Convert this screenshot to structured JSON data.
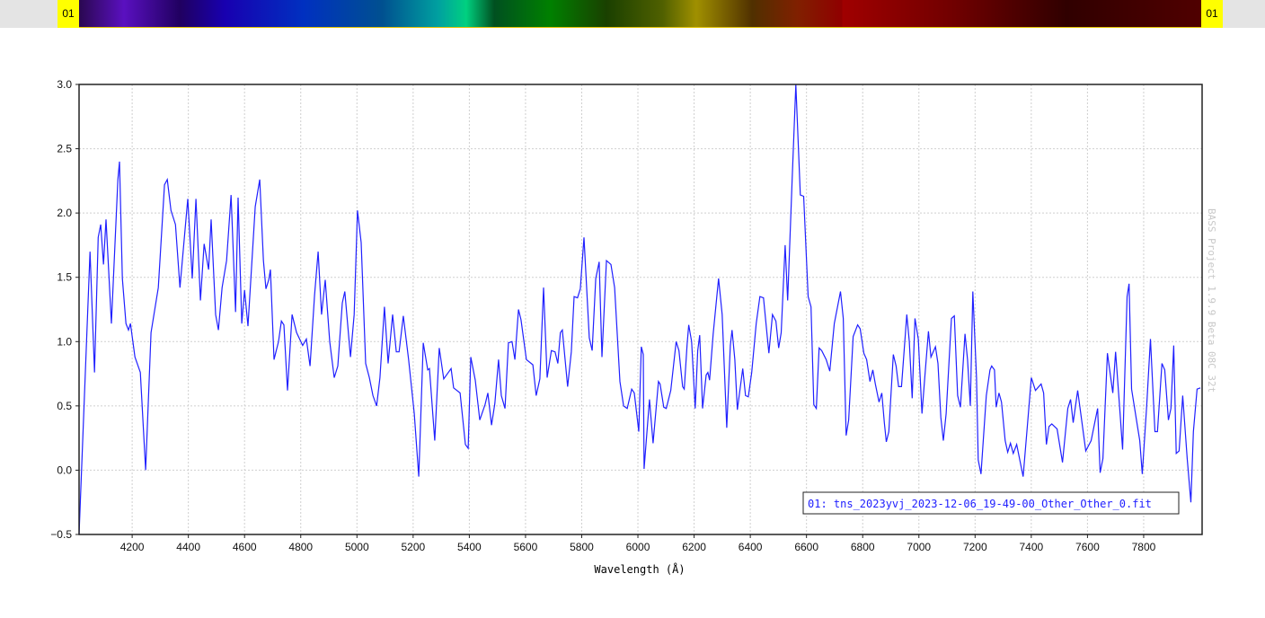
{
  "colorbar": {
    "left_label": "01",
    "right_label": "01",
    "tag_color": "#ffff00"
  },
  "watermark": "BASS Project 1.9.9 Beta 08C 32t",
  "chart_data": {
    "type": "line",
    "title": "",
    "xlabel": "Wavelength (Å)",
    "ylabel": "",
    "xlim": [
      4011,
      8008
    ],
    "ylim": [
      -0.5,
      3.0
    ],
    "xticks": [
      4200,
      4400,
      4600,
      4800,
      5000,
      5200,
      5400,
      5600,
      5800,
      6000,
      6200,
      6400,
      6600,
      6800,
      7000,
      7200,
      7400,
      7600,
      7800
    ],
    "yticks": [
      -0.5,
      0.0,
      0.5,
      1.0,
      1.5,
      2.0,
      2.5,
      3.0
    ],
    "ytick_labels": [
      "−0.5",
      "0.0",
      "0.5",
      "1.0",
      "1.5",
      "2.0",
      "2.5",
      "3.0"
    ],
    "grid": true,
    "legend_placement": "bottom-right",
    "series": [
      {
        "name": "01:  tns_2023yvj_2023-12-06_19-49-00_Other_Other_0.fit",
        "color": "#2020ff",
        "points": [
          [
            4011,
            -0.5
          ],
          [
            4050,
            1.7
          ],
          [
            4066,
            0.76
          ],
          [
            4079,
            1.81
          ],
          [
            4088,
            1.91
          ],
          [
            4098,
            1.6
          ],
          [
            4107,
            1.95
          ],
          [
            4126,
            1.14
          ],
          [
            4149,
            2.26
          ],
          [
            4155,
            2.4
          ],
          [
            4165,
            1.49
          ],
          [
            4178,
            1.14
          ],
          [
            4187,
            1.09
          ],
          [
            4194,
            1.14
          ],
          [
            4210,
            0.88
          ],
          [
            4229,
            0.76
          ],
          [
            4248,
            0.0
          ],
          [
            4267,
            1.07
          ],
          [
            4293,
            1.42
          ],
          [
            4315,
            2.22
          ],
          [
            4325,
            2.26
          ],
          [
            4338,
            2.02
          ],
          [
            4354,
            1.91
          ],
          [
            4370,
            1.42
          ],
          [
            4398,
            2.11
          ],
          [
            4414,
            1.49
          ],
          [
            4427,
            2.11
          ],
          [
            4443,
            1.32
          ],
          [
            4456,
            1.76
          ],
          [
            4472,
            1.56
          ],
          [
            4481,
            1.95
          ],
          [
            4497,
            1.21
          ],
          [
            4507,
            1.09
          ],
          [
            4520,
            1.42
          ],
          [
            4536,
            1.63
          ],
          [
            4552,
            2.14
          ],
          [
            4568,
            1.23
          ],
          [
            4577,
            2.12
          ],
          [
            4590,
            1.14
          ],
          [
            4600,
            1.4
          ],
          [
            4612,
            1.12
          ],
          [
            4638,
            2.05
          ],
          [
            4654,
            2.26
          ],
          [
            4667,
            1.63
          ],
          [
            4676,
            1.41
          ],
          [
            4686,
            1.48
          ],
          [
            4692,
            1.56
          ],
          [
            4705,
            0.86
          ],
          [
            4721,
            1.0
          ],
          [
            4731,
            1.16
          ],
          [
            4740,
            1.13
          ],
          [
            4753,
            0.62
          ],
          [
            4769,
            1.21
          ],
          [
            4785,
            1.07
          ],
          [
            4807,
            0.97
          ],
          [
            4820,
            1.02
          ],
          [
            4833,
            0.81
          ],
          [
            4849,
            1.36
          ],
          [
            4862,
            1.7
          ],
          [
            4874,
            1.21
          ],
          [
            4887,
            1.48
          ],
          [
            4903,
            1.0
          ],
          [
            4919,
            0.72
          ],
          [
            4932,
            0.81
          ],
          [
            4948,
            1.3
          ],
          [
            4957,
            1.39
          ],
          [
            4977,
            0.88
          ],
          [
            4990,
            1.21
          ],
          [
            5002,
            2.02
          ],
          [
            5015,
            1.77
          ],
          [
            5031,
            0.83
          ],
          [
            5044,
            0.72
          ],
          [
            5057,
            0.58
          ],
          [
            5070,
            0.5
          ],
          [
            5082,
            0.72
          ],
          [
            5098,
            1.27
          ],
          [
            5111,
            0.83
          ],
          [
            5127,
            1.21
          ],
          [
            5140,
            0.92
          ],
          [
            5150,
            0.92
          ],
          [
            5165,
            1.2
          ],
          [
            5184,
            0.86
          ],
          [
            5204,
            0.44
          ],
          [
            5220,
            -0.05
          ],
          [
            5236,
            0.99
          ],
          [
            5252,
            0.78
          ],
          [
            5258,
            0.79
          ],
          [
            5277,
            0.23
          ],
          [
            5293,
            0.95
          ],
          [
            5309,
            0.71
          ],
          [
            5335,
            0.79
          ],
          [
            5344,
            0.64
          ],
          [
            5367,
            0.6
          ],
          [
            5386,
            0.2
          ],
          [
            5396,
            0.17
          ],
          [
            5405,
            0.88
          ],
          [
            5421,
            0.7
          ],
          [
            5437,
            0.39
          ],
          [
            5456,
            0.51
          ],
          [
            5466,
            0.6
          ],
          [
            5479,
            0.35
          ],
          [
            5491,
            0.52
          ],
          [
            5504,
            0.86
          ],
          [
            5514,
            0.58
          ],
          [
            5527,
            0.48
          ],
          [
            5539,
            0.99
          ],
          [
            5552,
            1.0
          ],
          [
            5562,
            0.86
          ],
          [
            5575,
            1.25
          ],
          [
            5584,
            1.17
          ],
          [
            5603,
            0.86
          ],
          [
            5626,
            0.82
          ],
          [
            5638,
            0.58
          ],
          [
            5651,
            0.71
          ],
          [
            5664,
            1.42
          ],
          [
            5677,
            0.72
          ],
          [
            5692,
            0.93
          ],
          [
            5705,
            0.92
          ],
          [
            5715,
            0.83
          ],
          [
            5724,
            1.07
          ],
          [
            5731,
            1.09
          ],
          [
            5750,
            0.65
          ],
          [
            5763,
            0.92
          ],
          [
            5773,
            1.35
          ],
          [
            5785,
            1.34
          ],
          [
            5795,
            1.41
          ],
          [
            5808,
            1.81
          ],
          [
            5827,
            1.03
          ],
          [
            5837,
            0.93
          ],
          [
            5850,
            1.49
          ],
          [
            5862,
            1.62
          ],
          [
            5872,
            0.88
          ],
          [
            5888,
            1.63
          ],
          [
            5904,
            1.6
          ],
          [
            5917,
            1.42
          ],
          [
            5936,
            0.69
          ],
          [
            5949,
            0.5
          ],
          [
            5962,
            0.48
          ],
          [
            5978,
            0.63
          ],
          [
            5987,
            0.6
          ],
          [
            6003,
            0.3
          ],
          [
            6012,
            0.96
          ],
          [
            6019,
            0.9
          ],
          [
            6022,
            0.01
          ],
          [
            6041,
            0.55
          ],
          [
            6054,
            0.21
          ],
          [
            6073,
            0.69
          ],
          [
            6079,
            0.67
          ],
          [
            6092,
            0.49
          ],
          [
            6101,
            0.48
          ],
          [
            6117,
            0.62
          ],
          [
            6136,
            1.0
          ],
          [
            6146,
            0.93
          ],
          [
            6159,
            0.65
          ],
          [
            6165,
            0.63
          ],
          [
            6175,
            0.98
          ],
          [
            6181,
            1.13
          ],
          [
            6191,
            1.0
          ],
          [
            6204,
            0.48
          ],
          [
            6213,
            0.93
          ],
          [
            6220,
            1.05
          ],
          [
            6230,
            0.48
          ],
          [
            6243,
            0.74
          ],
          [
            6249,
            0.76
          ],
          [
            6255,
            0.7
          ],
          [
            6268,
            1.06
          ],
          [
            6287,
            1.49
          ],
          [
            6300,
            1.21
          ],
          [
            6316,
            0.33
          ],
          [
            6329,
            0.97
          ],
          [
            6335,
            1.09
          ],
          [
            6345,
            0.86
          ],
          [
            6354,
            0.47
          ],
          [
            6373,
            0.79
          ],
          [
            6383,
            0.58
          ],
          [
            6393,
            0.57
          ],
          [
            6405,
            0.76
          ],
          [
            6421,
            1.14
          ],
          [
            6434,
            1.35
          ],
          [
            6447,
            1.34
          ],
          [
            6466,
            0.91
          ],
          [
            6479,
            1.21
          ],
          [
            6491,
            1.16
          ],
          [
            6501,
            0.95
          ],
          [
            6510,
            1.07
          ],
          [
            6524,
            1.75
          ],
          [
            6533,
            1.32
          ],
          [
            6549,
            2.26
          ],
          [
            6562,
            3.0
          ],
          [
            6578,
            2.14
          ],
          [
            6590,
            2.13
          ],
          [
            6606,
            1.35
          ],
          [
            6616,
            1.27
          ],
          [
            6626,
            0.51
          ],
          [
            6635,
            0.48
          ],
          [
            6645,
            0.95
          ],
          [
            6654,
            0.93
          ],
          [
            6670,
            0.86
          ],
          [
            6683,
            0.77
          ],
          [
            6699,
            1.14
          ],
          [
            6721,
            1.39
          ],
          [
            6731,
            1.18
          ],
          [
            6741,
            0.27
          ],
          [
            6750,
            0.39
          ],
          [
            6766,
            1.04
          ],
          [
            6782,
            1.13
          ],
          [
            6791,
            1.1
          ],
          [
            6804,
            0.91
          ],
          [
            6814,
            0.86
          ],
          [
            6826,
            0.69
          ],
          [
            6836,
            0.78
          ],
          [
            6845,
            0.67
          ],
          [
            6858,
            0.53
          ],
          [
            6868,
            0.6
          ],
          [
            6877,
            0.37
          ],
          [
            6884,
            0.22
          ],
          [
            6893,
            0.3
          ],
          [
            6909,
            0.9
          ],
          [
            6919,
            0.81
          ],
          [
            6928,
            0.65
          ],
          [
            6938,
            0.65
          ],
          [
            6957,
            1.21
          ],
          [
            6966,
            1.0
          ],
          [
            6976,
            0.56
          ],
          [
            6986,
            1.18
          ],
          [
            6998,
            1.02
          ],
          [
            7011,
            0.44
          ],
          [
            7021,
            0.72
          ],
          [
            7034,
            1.08
          ],
          [
            7043,
            0.88
          ],
          [
            7059,
            0.96
          ],
          [
            7068,
            0.83
          ],
          [
            7078,
            0.41
          ],
          [
            7087,
            0.23
          ],
          [
            7097,
            0.44
          ],
          [
            7116,
            1.18
          ],
          [
            7126,
            1.2
          ],
          [
            7138,
            0.58
          ],
          [
            7148,
            0.49
          ],
          [
            7164,
            1.06
          ],
          [
            7173,
            0.86
          ],
          [
            7183,
            0.5
          ],
          [
            7192,
            1.39
          ],
          [
            7205,
            0.72
          ],
          [
            7211,
            0.08
          ],
          [
            7221,
            -0.03
          ],
          [
            7240,
            0.58
          ],
          [
            7253,
            0.78
          ],
          [
            7259,
            0.81
          ],
          [
            7269,
            0.78
          ],
          [
            7275,
            0.49
          ],
          [
            7285,
            0.6
          ],
          [
            7294,
            0.53
          ],
          [
            7307,
            0.23
          ],
          [
            7316,
            0.14
          ],
          [
            7326,
            0.21
          ],
          [
            7336,
            0.13
          ],
          [
            7348,
            0.2
          ],
          [
            7371,
            -0.05
          ],
          [
            7387,
            0.37
          ],
          [
            7400,
            0.72
          ],
          [
            7415,
            0.62
          ],
          [
            7435,
            0.67
          ],
          [
            7444,
            0.6
          ],
          [
            7454,
            0.2
          ],
          [
            7463,
            0.34
          ],
          [
            7473,
            0.36
          ],
          [
            7492,
            0.32
          ],
          [
            7511,
            0.06
          ],
          [
            7530,
            0.48
          ],
          [
            7540,
            0.55
          ],
          [
            7549,
            0.37
          ],
          [
            7565,
            0.62
          ],
          [
            7594,
            0.15
          ],
          [
            7613,
            0.23
          ],
          [
            7626,
            0.37
          ],
          [
            7636,
            0.48
          ],
          [
            7645,
            -0.02
          ],
          [
            7655,
            0.09
          ],
          [
            7671,
            0.91
          ],
          [
            7690,
            0.6
          ],
          [
            7700,
            0.92
          ],
          [
            7716,
            0.44
          ],
          [
            7725,
            0.16
          ],
          [
            7741,
            1.35
          ],
          [
            7748,
            1.45
          ],
          [
            7757,
            0.63
          ],
          [
            7776,
            0.37
          ],
          [
            7786,
            0.23
          ],
          [
            7795,
            -0.03
          ],
          [
            7811,
            0.51
          ],
          [
            7824,
            1.02
          ],
          [
            7840,
            0.3
          ],
          [
            7849,
            0.3
          ],
          [
            7865,
            0.83
          ],
          [
            7875,
            0.78
          ],
          [
            7888,
            0.39
          ],
          [
            7897,
            0.48
          ],
          [
            7907,
            0.97
          ],
          [
            7916,
            0.13
          ],
          [
            7926,
            0.15
          ],
          [
            7939,
            0.58
          ],
          [
            7955,
            0.09
          ],
          [
            7968,
            -0.25
          ],
          [
            7977,
            0.3
          ],
          [
            7990,
            0.63
          ],
          [
            8002,
            0.64
          ]
        ]
      }
    ]
  }
}
